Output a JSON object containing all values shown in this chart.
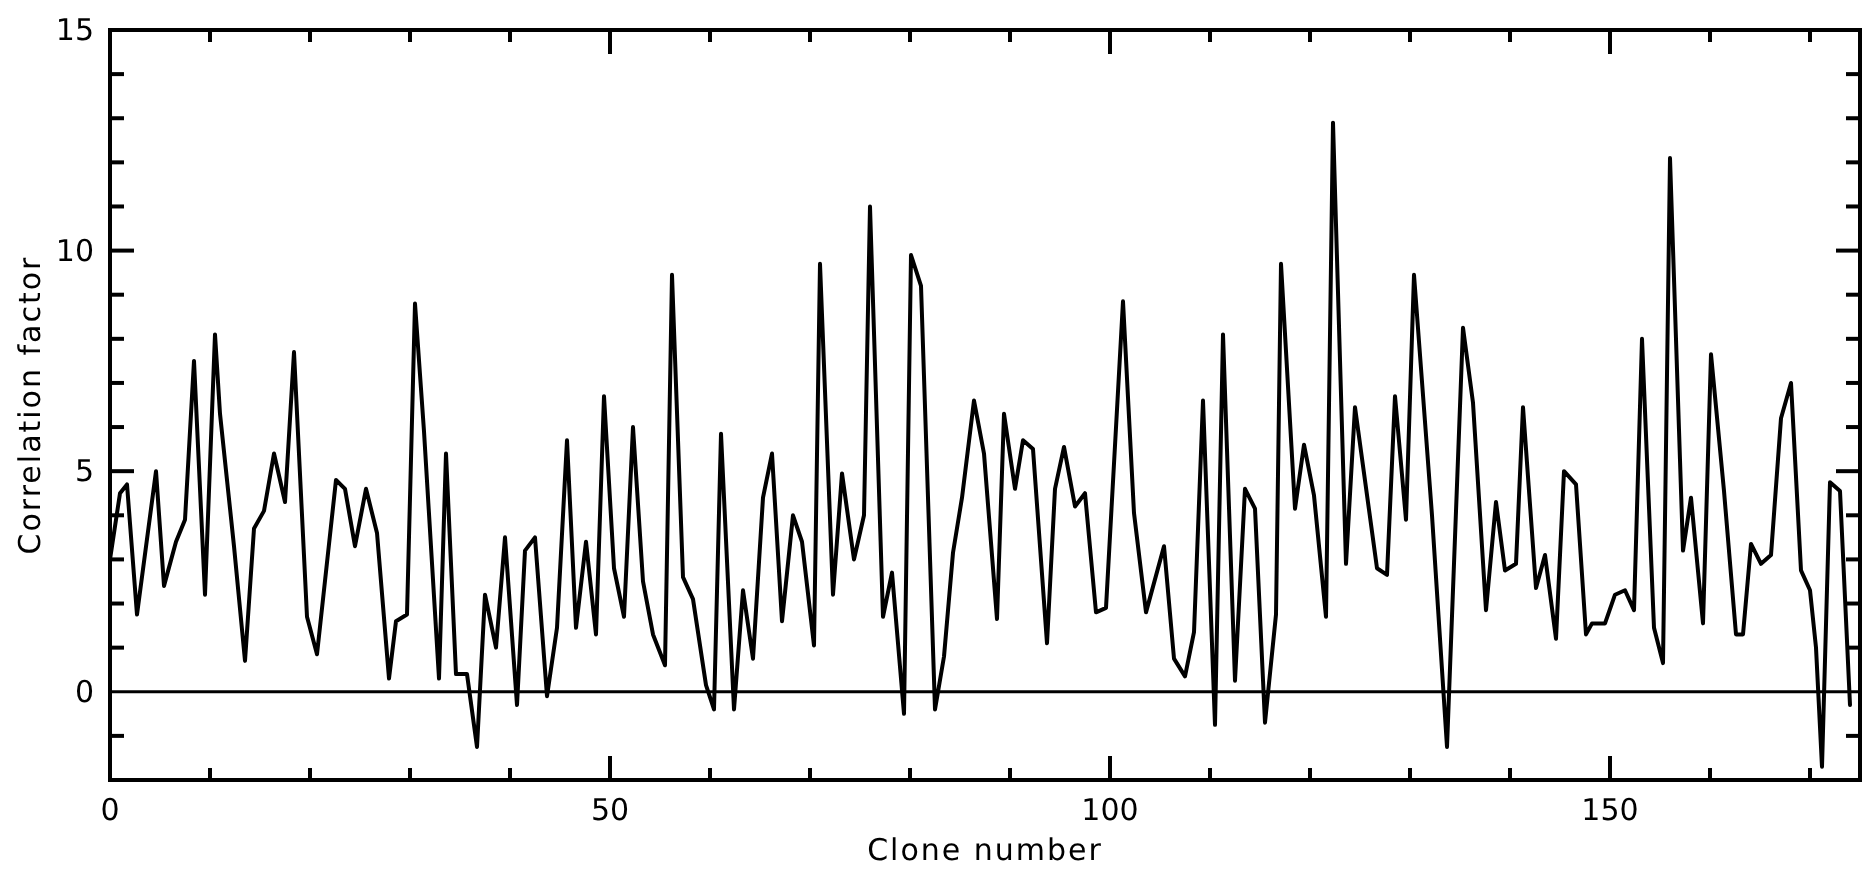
{
  "chart_data": {
    "type": "line",
    "xlabel": "Clone number",
    "ylabel": "Correlation factor",
    "xlim": [
      0,
      175
    ],
    "ylim": [
      -2,
      15
    ],
    "xticks": [
      0,
      {
        "value": 10,
        "label": null
      },
      {
        "value": 20,
        "label": null
      },
      {
        "value": 30,
        "label": null
      },
      {
        "value": 40,
        "label": null
      },
      50,
      {
        "value": 60,
        "label": null
      },
      {
        "value": 70,
        "label": null
      },
      {
        "value": 80,
        "label": null
      },
      {
        "value": 90,
        "label": null
      },
      100,
      {
        "value": 110,
        "label": null
      },
      {
        "value": 120,
        "label": null
      },
      {
        "value": 130,
        "label": null
      },
      {
        "value": 140,
        "label": null
      },
      150,
      {
        "value": 160,
        "label": null
      },
      {
        "value": 170,
        "label": null
      }
    ],
    "yticks": [
      {
        "value": -1,
        "label": null
      },
      0,
      {
        "value": 1,
        "label": null
      },
      {
        "value": 2,
        "label": null
      },
      {
        "value": 3,
        "label": null
      },
      {
        "value": 4,
        "label": null
      },
      5,
      {
        "value": 6,
        "label": null
      },
      {
        "value": 7,
        "label": null
      },
      {
        "value": 8,
        "label": null
      },
      {
        "value": 9,
        "label": null
      },
      10,
      {
        "value": 11,
        "label": null
      },
      {
        "value": 12,
        "label": null
      },
      {
        "value": 13,
        "label": null
      },
      {
        "value": 14,
        "label": null
      },
      15
    ],
    "grid": false,
    "marker": "none",
    "line_style": "solid",
    "ref_lines": [
      {
        "axis": "y",
        "value": 0,
        "color": "#000000"
      }
    ],
    "series": [
      {
        "color": "#000000",
        "x": [
          0,
          1,
          1.7,
          2.7,
          4.6,
          5.4,
          6.6,
          7.5,
          8.4,
          9.5,
          10.5,
          11,
          12.4,
          13.5,
          14.4,
          15.4,
          16.4,
          17.5,
          18.4,
          19.7,
          20.7,
          22.6,
          23.5,
          24.5,
          25.6,
          26.7,
          27.9,
          28.6,
          29.7,
          30.5,
          31.4,
          32.9,
          33.6,
          34.6,
          35.7,
          36.7,
          37.5,
          38.6,
          39.5,
          40.7,
          41.5,
          42.5,
          43.7,
          44.7,
          45.7,
          46.6,
          47.6,
          48.6,
          49.4,
          50.4,
          51.4,
          52.3,
          53.3,
          54.3,
          55.5,
          56.2,
          57.3,
          58.3,
          59.6,
          60.4,
          61.1,
          62.4,
          63.3,
          64.3,
          65.3,
          66.2,
          67.2,
          68.3,
          69.2,
          70.4,
          71,
          72.3,
          73.2,
          74.4,
          75.4,
          76,
          77.3,
          78.2,
          79.4,
          80.1,
          81.1,
          82.5,
          83.4,
          84.3,
          85.2,
          86.4,
          87.4,
          88.7,
          89.4,
          90.5,
          91.3,
          92.3,
          93.7,
          94.5,
          95.4,
          96.5,
          97.5,
          98.6,
          99.6,
          101.3,
          102.4,
          103.6,
          105.4,
          106.4,
          107.5,
          108.4,
          109.3,
          110.5,
          111.3,
          112.5,
          113.5,
          114.5,
          115.5,
          116.6,
          117.1,
          118.5,
          119.4,
          120.4,
          121.6,
          122.3,
          123.6,
          124.5,
          126.7,
          127.7,
          128.5,
          129.6,
          130.4,
          132.2,
          133.7,
          135.3,
          136.3,
          137.6,
          138.6,
          139.5,
          140.6,
          141.3,
          142.6,
          143.5,
          144.6,
          145.4,
          146.6,
          147.6,
          148.2,
          149.5,
          150.5,
          151.5,
          152.4,
          153.2,
          154.4,
          155.3,
          156,
          157.3,
          158.1,
          159.3,
          160.1,
          161.4,
          162.6,
          163.3,
          164.1,
          165.1,
          166.1,
          167.1,
          168.1,
          169.1,
          170,
          170.6,
          171.2,
          172,
          173,
          174
        ],
        "values": [
          3.0,
          4.5,
          4.7,
          1.75,
          5.0,
          2.4,
          3.4,
          3.9,
          7.5,
          2.2,
          8.1,
          6.3,
          3.3,
          0.7,
          3.7,
          4.1,
          5.4,
          4.3,
          7.7,
          1.7,
          0.85,
          4.8,
          4.6,
          3.3,
          4.6,
          3.6,
          0.3,
          1.6,
          1.75,
          8.8,
          5.9,
          0.3,
          5.4,
          0.4,
          0.4,
          -1.25,
          2.2,
          1.0,
          3.5,
          -0.3,
          3.2,
          3.5,
          -0.1,
          1.45,
          5.7,
          1.45,
          3.4,
          1.3,
          6.7,
          2.8,
          1.7,
          6.0,
          2.5,
          1.3,
          0.6,
          9.45,
          2.6,
          2.1,
          0.15,
          -0.4,
          5.85,
          -0.4,
          2.3,
          0.75,
          4.4,
          5.4,
          1.6,
          4.0,
          3.4,
          1.05,
          9.7,
          2.2,
          4.95,
          3.0,
          4.0,
          11.0,
          1.7,
          2.7,
          -0.5,
          9.9,
          9.2,
          -0.4,
          0.8,
          3.15,
          4.4,
          6.6,
          5.4,
          1.65,
          6.3,
          4.6,
          5.7,
          5.5,
          1.1,
          4.6,
          5.55,
          4.2,
          4.5,
          1.8,
          1.9,
          8.85,
          4.05,
          1.8,
          3.3,
          0.75,
          0.35,
          1.35,
          6.6,
          -0.75,
          8.1,
          0.25,
          4.6,
          4.15,
          -0.7,
          1.75,
          9.7,
          4.15,
          5.6,
          4.45,
          1.7,
          12.9,
          2.9,
          6.45,
          2.8,
          2.65,
          6.7,
          3.9,
          9.45,
          4.0,
          -1.25,
          8.25,
          6.55,
          1.85,
          4.3,
          2.75,
          2.9,
          6.45,
          2.35,
          3.1,
          1.2,
          5.0,
          4.7,
          1.3,
          1.55,
          1.55,
          2.2,
          2.3,
          1.85,
          8.0,
          1.45,
          0.65,
          12.1,
          3.2,
          4.4,
          1.55,
          7.65,
          4.55,
          1.3,
          1.3,
          3.35,
          2.9,
          3.1,
          6.2,
          7.0,
          2.75,
          2.3,
          1.0,
          -1.7,
          4.75,
          4.55,
          -0.3
        ]
      }
    ]
  }
}
